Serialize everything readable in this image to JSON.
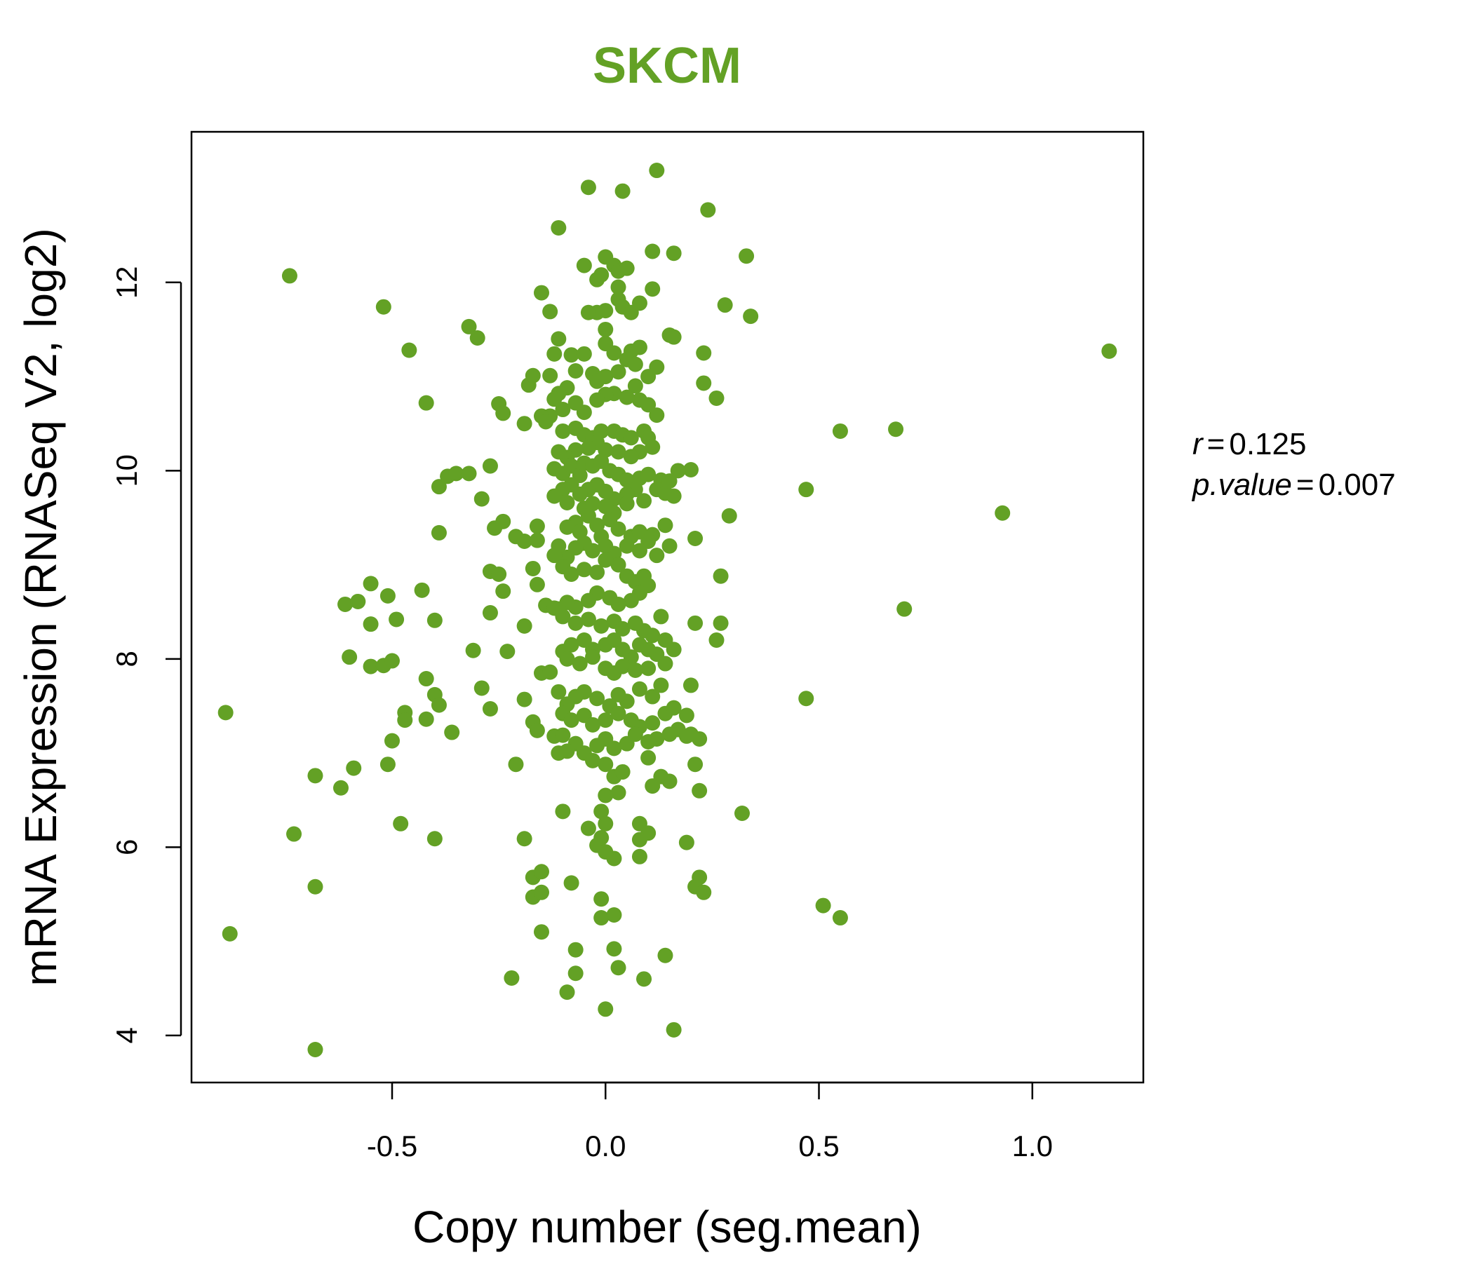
{
  "chart_data": {
    "type": "scatter",
    "title": "SKCM",
    "xlabel": "Copy number (seg.mean)",
    "ylabel": "mRNA Expression (RNASeq V2, log2)",
    "xlim": [
      -0.97,
      1.26
    ],
    "ylim": [
      3.5,
      13.6
    ],
    "xticks": [
      -0.5,
      0.0,
      0.5,
      1.0
    ],
    "xtick_labels": [
      "-0.5",
      "0.0",
      "0.5",
      "1.0"
    ],
    "yticks": [
      4,
      6,
      8,
      10,
      12
    ],
    "ytick_labels": [
      "4",
      "6",
      "8",
      "10",
      "12"
    ],
    "grid": false,
    "legend": "none",
    "point_color": "#63a125",
    "stats": {
      "r_label": "r",
      "r_value": "0.125",
      "p_label": "p.value",
      "p_value": "0.007"
    },
    "points": [
      [
        -0.74,
        12.07
      ],
      [
        -0.52,
        11.74
      ],
      [
        -0.46,
        11.28
      ],
      [
        -0.42,
        10.72
      ],
      [
        -0.89,
        7.43
      ],
      [
        -0.88,
        5.08
      ],
      [
        -0.73,
        6.14
      ],
      [
        -0.68,
        6.76
      ],
      [
        -0.68,
        5.58
      ],
      [
        -0.68,
        3.85
      ],
      [
        -0.62,
        6.63
      ],
      [
        -0.59,
        6.84
      ],
      [
        -0.6,
        8.02
      ],
      [
        -0.61,
        8.58
      ],
      [
        -0.58,
        8.61
      ],
      [
        -0.55,
        8.8
      ],
      [
        -0.55,
        8.37
      ],
      [
        -0.55,
        7.92
      ],
      [
        -0.52,
        7.93
      ],
      [
        -0.5,
        7.98
      ],
      [
        -0.5,
        7.13
      ],
      [
        -0.51,
        6.88
      ],
      [
        -0.48,
        6.25
      ],
      [
        -0.47,
        7.43
      ],
      [
        -0.47,
        7.35
      ],
      [
        -0.49,
        8.42
      ],
      [
        -0.51,
        8.67
      ],
      [
        -0.43,
        8.73
      ],
      [
        -0.42,
        7.79
      ],
      [
        -0.4,
        7.62
      ],
      [
        -0.39,
        7.51
      ],
      [
        -0.42,
        7.36
      ],
      [
        -0.36,
        7.22
      ],
      [
        -0.4,
        6.09
      ],
      [
        -0.4,
        8.41
      ],
      [
        -0.39,
        9.34
      ],
      [
        -0.39,
        9.83
      ],
      [
        -0.37,
        9.94
      ],
      [
        -0.35,
        9.97
      ],
      [
        -0.32,
        9.97
      ],
      [
        -0.32,
        11.53
      ],
      [
        -0.3,
        11.41
      ],
      [
        -0.31,
        8.09
      ],
      [
        -0.29,
        7.69
      ],
      [
        -0.27,
        7.47
      ],
      [
        -0.27,
        8.49
      ],
      [
        -0.27,
        8.93
      ],
      [
        -0.25,
        8.9
      ],
      [
        -0.26,
        9.39
      ],
      [
        -0.24,
        9.46
      ],
      [
        -0.27,
        10.05
      ],
      [
        -0.29,
        9.7
      ],
      [
        -0.25,
        10.71
      ],
      [
        -0.24,
        10.61
      ],
      [
        -0.21,
        9.3
      ],
      [
        -0.19,
        9.25
      ],
      [
        -0.24,
        8.72
      ],
      [
        -0.23,
        8.08
      ],
      [
        -0.19,
        8.35
      ],
      [
        -0.19,
        7.57
      ],
      [
        -0.17,
        7.33
      ],
      [
        -0.16,
        7.24
      ],
      [
        -0.21,
        6.88
      ],
      [
        -0.19,
        6.09
      ],
      [
        -0.17,
        5.68
      ],
      [
        -0.15,
        5.74
      ],
      [
        -0.17,
        5.47
      ],
      [
        -0.15,
        5.52
      ],
      [
        -0.15,
        5.1
      ],
      [
        -0.22,
        4.61
      ],
      [
        -0.19,
        10.5
      ],
      [
        -0.18,
        10.91
      ],
      [
        -0.17,
        11.01
      ],
      [
        -0.15,
        11.89
      ],
      [
        -0.13,
        11.69
      ],
      [
        -0.16,
        9.41
      ],
      [
        -0.16,
        9.26
      ],
      [
        -0.17,
        8.96
      ],
      [
        -0.16,
        8.79
      ],
      [
        -0.14,
        8.57
      ],
      [
        -0.12,
        8.54
      ],
      [
        -0.15,
        7.85
      ],
      [
        -0.13,
        7.86
      ],
      [
        -0.11,
        7.65
      ],
      [
        -0.12,
        7.18
      ],
      [
        -0.1,
        7.19
      ],
      [
        -0.11,
        7.0
      ],
      [
        -0.1,
        6.38
      ],
      [
        -0.08,
        5.62
      ],
      [
        -0.07,
        4.91
      ],
      [
        -0.07,
        4.66
      ],
      [
        -0.09,
        4.46
      ],
      [
        -0.11,
        12.58
      ],
      [
        -0.04,
        13.01
      ],
      [
        -0.05,
        12.18
      ],
      [
        -0.02,
        12.03
      ],
      [
        -0.01,
        12.08
      ],
      [
        0.0,
        12.27
      ],
      [
        0.02,
        12.18
      ],
      [
        0.03,
        12.12
      ],
      [
        0.05,
        12.15
      ],
      [
        0.04,
        12.97
      ],
      [
        0.12,
        13.19
      ],
      [
        0.24,
        12.77
      ],
      [
        0.11,
        12.33
      ],
      [
        0.16,
        12.31
      ],
      [
        0.33,
        12.28
      ],
      [
        0.11,
        11.93
      ],
      [
        0.03,
        11.95
      ],
      [
        0.03,
        11.82
      ],
      [
        0.04,
        11.74
      ],
      [
        0.06,
        11.68
      ],
      [
        0.08,
        11.78
      ],
      [
        0.0,
        11.7
      ],
      [
        -0.02,
        11.68
      ],
      [
        -0.04,
        11.68
      ],
      [
        0.28,
        11.76
      ],
      [
        0.34,
        11.64
      ],
      [
        0.15,
        11.44
      ],
      [
        0.16,
        11.42
      ],
      [
        0.0,
        11.5
      ],
      [
        0.0,
        11.35
      ],
      [
        0.02,
        11.25
      ],
      [
        0.06,
        11.27
      ],
      [
        0.08,
        11.31
      ],
      [
        0.05,
        11.18
      ],
      [
        0.07,
        11.13
      ],
      [
        -0.08,
        11.23
      ],
      [
        -0.05,
        11.24
      ],
      [
        -0.11,
        11.4
      ],
      [
        -0.12,
        11.24
      ],
      [
        -0.13,
        11.01
      ],
      [
        -0.07,
        11.06
      ],
      [
        -0.03,
        11.03
      ],
      [
        -0.02,
        10.95
      ],
      [
        0.0,
        11.0
      ],
      [
        0.03,
        11.05
      ],
      [
        0.1,
        11.0
      ],
      [
        0.12,
        11.1
      ],
      [
        0.23,
        11.25
      ],
      [
        0.23,
        10.93
      ],
      [
        0.26,
        10.77
      ],
      [
        0.2,
        10.01
      ],
      [
        0.17,
        10.0
      ],
      [
        0.13,
        9.9
      ],
      [
        0.12,
        10.59
      ],
      [
        0.1,
        10.7
      ],
      [
        0.08,
        10.75
      ],
      [
        0.07,
        10.9
      ],
      [
        0.05,
        10.78
      ],
      [
        0.02,
        10.82
      ],
      [
        0.0,
        10.81
      ],
      [
        -0.02,
        10.75
      ],
      [
        -0.05,
        10.62
      ],
      [
        -0.07,
        10.72
      ],
      [
        -0.09,
        10.88
      ],
      [
        -0.11,
        10.82
      ],
      [
        -0.12,
        10.76
      ],
      [
        -0.1,
        10.65
      ],
      [
        -0.13,
        10.58
      ],
      [
        -0.15,
        10.58
      ],
      [
        -0.14,
        10.52
      ],
      [
        -0.1,
        10.42
      ],
      [
        -0.07,
        10.45
      ],
      [
        -0.05,
        10.38
      ],
      [
        -0.03,
        10.35
      ],
      [
        -0.01,
        10.42
      ],
      [
        0.02,
        10.42
      ],
      [
        0.04,
        10.38
      ],
      [
        0.06,
        10.35
      ],
      [
        0.09,
        10.42
      ],
      [
        0.1,
        10.35
      ],
      [
        0.11,
        10.25
      ],
      [
        0.08,
        10.2
      ],
      [
        0.06,
        10.15
      ],
      [
        0.03,
        10.2
      ],
      [
        0.0,
        10.22
      ],
      [
        -0.02,
        10.3
      ],
      [
        -0.04,
        10.24
      ],
      [
        -0.07,
        10.22
      ],
      [
        -0.09,
        10.14
      ],
      [
        -0.11,
        10.2
      ],
      [
        -0.12,
        10.02
      ],
      [
        -0.1,
        9.97
      ],
      [
        -0.08,
        10.05
      ],
      [
        -0.06,
        9.95
      ],
      [
        -0.05,
        10.08
      ],
      [
        -0.03,
        10.05
      ],
      [
        -0.01,
        10.1
      ],
      [
        0.01,
        10.0
      ],
      [
        0.03,
        9.96
      ],
      [
        0.05,
        9.9
      ],
      [
        0.08,
        9.92
      ],
      [
        0.1,
        9.96
      ],
      [
        0.12,
        9.8
      ],
      [
        0.14,
        9.76
      ],
      [
        0.15,
        9.89
      ],
      [
        0.16,
        9.73
      ],
      [
        0.09,
        9.68
      ],
      [
        0.07,
        9.8
      ],
      [
        0.05,
        9.75
      ],
      [
        0.02,
        9.7
      ],
      [
        0.0,
        9.78
      ],
      [
        -0.02,
        9.85
      ],
      [
        -0.04,
        9.8
      ],
      [
        -0.06,
        9.75
      ],
      [
        -0.08,
        9.85
      ],
      [
        -0.1,
        9.8
      ],
      [
        -0.12,
        9.73
      ],
      [
        -0.09,
        9.66
      ],
      [
        -0.05,
        9.6
      ],
      [
        -0.03,
        9.65
      ],
      [
        0.0,
        9.62
      ],
      [
        0.02,
        9.55
      ],
      [
        0.05,
        9.65
      ],
      [
        0.01,
        9.48
      ],
      [
        -0.02,
        9.42
      ],
      [
        -0.04,
        9.52
      ],
      [
        -0.07,
        9.45
      ],
      [
        -0.09,
        9.4
      ],
      [
        -0.06,
        9.35
      ],
      [
        -0.01,
        9.3
      ],
      [
        0.03,
        9.38
      ],
      [
        0.06,
        9.3
      ],
      [
        0.08,
        9.35
      ],
      [
        0.11,
        9.32
      ],
      [
        0.14,
        9.42
      ],
      [
        0.15,
        9.2
      ],
      [
        0.12,
        9.1
      ],
      [
        0.1,
        9.25
      ],
      [
        0.08,
        9.15
      ],
      [
        0.05,
        9.2
      ],
      [
        0.02,
        9.12
      ],
      [
        0.0,
        9.2
      ],
      [
        -0.03,
        9.15
      ],
      [
        -0.05,
        9.23
      ],
      [
        -0.07,
        9.18
      ],
      [
        -0.09,
        9.08
      ],
      [
        -0.11,
        9.2
      ],
      [
        -0.12,
        9.1
      ],
      [
        -0.1,
        8.98
      ],
      [
        -0.08,
        8.9
      ],
      [
        -0.05,
        8.95
      ],
      [
        -0.02,
        8.92
      ],
      [
        0.0,
        9.05
      ],
      [
        0.03,
        9.0
      ],
      [
        0.05,
        8.88
      ],
      [
        0.07,
        8.82
      ],
      [
        0.09,
        8.88
      ],
      [
        0.1,
        8.78
      ],
      [
        0.08,
        8.7
      ],
      [
        0.06,
        8.62
      ],
      [
        0.03,
        8.58
      ],
      [
        0.01,
        8.65
      ],
      [
        -0.02,
        8.7
      ],
      [
        -0.04,
        8.62
      ],
      [
        -0.07,
        8.55
      ],
      [
        -0.09,
        8.6
      ],
      [
        -0.11,
        8.53
      ],
      [
        -0.1,
        8.45
      ],
      [
        -0.07,
        8.38
      ],
      [
        -0.04,
        8.42
      ],
      [
        -0.01,
        8.35
      ],
      [
        0.02,
        8.4
      ],
      [
        0.04,
        8.32
      ],
      [
        0.07,
        8.38
      ],
      [
        0.09,
        8.3
      ],
      [
        0.11,
        8.25
      ],
      [
        0.13,
        8.45
      ],
      [
        0.14,
        8.2
      ],
      [
        0.16,
        8.1
      ],
      [
        0.12,
        8.05
      ],
      [
        0.1,
        8.1
      ],
      [
        0.08,
        8.15
      ],
      [
        0.06,
        8.02
      ],
      [
        0.04,
        8.1
      ],
      [
        0.02,
        8.2
      ],
      [
        0.0,
        8.15
      ],
      [
        -0.03,
        8.1
      ],
      [
        -0.05,
        8.2
      ],
      [
        -0.08,
        8.15
      ],
      [
        -0.1,
        8.08
      ],
      [
        -0.09,
        8.0
      ],
      [
        -0.06,
        7.95
      ],
      [
        -0.03,
        8.02
      ],
      [
        0.0,
        7.9
      ],
      [
        0.02,
        7.85
      ],
      [
        0.04,
        7.92
      ],
      [
        0.07,
        7.88
      ],
      [
        0.1,
        7.9
      ],
      [
        0.14,
        7.95
      ],
      [
        0.13,
        7.72
      ],
      [
        0.11,
        7.6
      ],
      [
        0.08,
        7.68
      ],
      [
        0.05,
        7.55
      ],
      [
        0.03,
        7.62
      ],
      [
        0.01,
        7.5
      ],
      [
        -0.02,
        7.58
      ],
      [
        -0.05,
        7.65
      ],
      [
        -0.07,
        7.6
      ],
      [
        -0.09,
        7.52
      ],
      [
        -0.1,
        7.42
      ],
      [
        -0.08,
        7.35
      ],
      [
        -0.05,
        7.4
      ],
      [
        -0.03,
        7.3
      ],
      [
        0.0,
        7.35
      ],
      [
        0.03,
        7.42
      ],
      [
        0.06,
        7.35
      ],
      [
        0.08,
        7.28
      ],
      [
        0.11,
        7.32
      ],
      [
        0.14,
        7.42
      ],
      [
        0.16,
        7.48
      ],
      [
        0.19,
        7.4
      ],
      [
        0.2,
        7.72
      ],
      [
        0.17,
        7.25
      ],
      [
        0.15,
        7.2
      ],
      [
        0.12,
        7.15
      ],
      [
        0.1,
        7.12
      ],
      [
        0.07,
        7.2
      ],
      [
        0.05,
        7.1
      ],
      [
        0.02,
        7.05
      ],
      [
        0.0,
        7.15
      ],
      [
        -0.02,
        7.08
      ],
      [
        -0.05,
        7.0
      ],
      [
        -0.07,
        7.1
      ],
      [
        -0.09,
        7.02
      ],
      [
        -0.03,
        6.92
      ],
      [
        0.0,
        6.88
      ],
      [
        0.02,
        6.75
      ],
      [
        0.04,
        6.8
      ],
      [
        0.1,
        6.95
      ],
      [
        0.13,
        6.75
      ],
      [
        0.15,
        6.7
      ],
      [
        0.2,
        7.2
      ],
      [
        0.22,
        7.15
      ],
      [
        0.21,
        6.88
      ],
      [
        0.22,
        6.6
      ],
      [
        0.11,
        6.65
      ],
      [
        0.03,
        6.58
      ],
      [
        0.0,
        6.55
      ],
      [
        -0.01,
        6.38
      ],
      [
        0.0,
        6.25
      ],
      [
        -0.04,
        6.2
      ],
      [
        -0.01,
        6.1
      ],
      [
        -0.02,
        6.02
      ],
      [
        0.0,
        5.95
      ],
      [
        0.02,
        5.88
      ],
      [
        0.08,
        6.25
      ],
      [
        0.1,
        6.15
      ],
      [
        0.08,
        6.08
      ],
      [
        0.08,
        5.9
      ],
      [
        0.19,
        6.05
      ],
      [
        0.22,
        5.68
      ],
      [
        0.21,
        5.58
      ],
      [
        0.23,
        5.52
      ],
      [
        0.32,
        6.36
      ],
      [
        -0.01,
        5.45
      ],
      [
        -0.01,
        5.25
      ],
      [
        0.02,
        5.28
      ],
      [
        0.02,
        4.92
      ],
      [
        0.03,
        4.72
      ],
      [
        0.09,
        4.6
      ],
      [
        0.14,
        4.85
      ],
      [
        0.0,
        4.28
      ],
      [
        0.16,
        4.06
      ],
      [
        0.19,
        7.18
      ],
      [
        0.21,
        8.38
      ],
      [
        0.26,
        8.2
      ],
      [
        0.27,
        8.38
      ],
      [
        0.27,
        8.88
      ],
      [
        0.29,
        9.52
      ],
      [
        0.21,
        9.28
      ],
      [
        0.47,
        9.8
      ],
      [
        0.55,
        10.42
      ],
      [
        0.68,
        10.44
      ],
      [
        0.93,
        9.55
      ],
      [
        0.7,
        8.53
      ],
      [
        0.47,
        7.58
      ],
      [
        0.51,
        5.38
      ],
      [
        0.55,
        5.25
      ],
      [
        1.18,
        11.27
      ]
    ]
  }
}
